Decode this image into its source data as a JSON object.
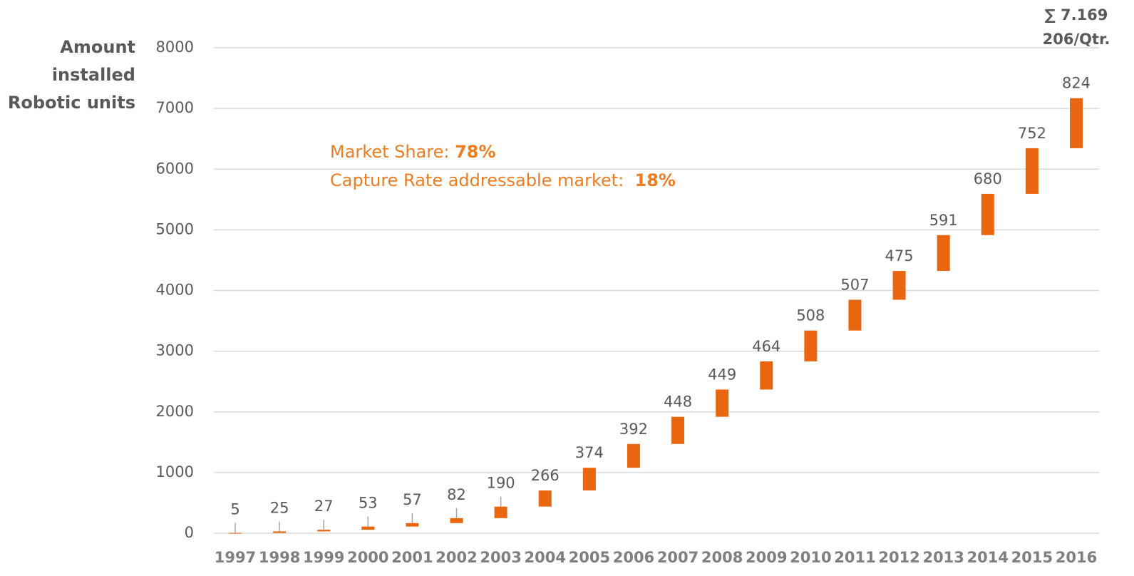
{
  "chart_data": {
    "type": "waterfall",
    "y_label": [
      "Amount",
      "installed",
      "Robotic units"
    ],
    "categories": [
      "1997",
      "1998",
      "1999",
      "2000",
      "2001",
      "2002",
      "2003",
      "2004",
      "2005",
      "2006",
      "2007",
      "2008",
      "2009",
      "2010",
      "2011",
      "2012",
      "2013",
      "2014",
      "2015",
      "2016"
    ],
    "values": [
      5,
      25,
      27,
      53,
      57,
      82,
      190,
      266,
      374,
      392,
      448,
      449,
      464,
      508,
      507,
      475,
      591,
      680,
      752,
      824
    ],
    "color": "#ea650f",
    "ylim": [
      0,
      8000
    ],
    "yticks": [
      0,
      1000,
      2000,
      3000,
      4000,
      5000,
      6000,
      7000,
      8000
    ],
    "grid": true,
    "annotations": {
      "total": "∑ 7.169",
      "per_quarter": "206/Qtr.",
      "market_share_label": "Market Share: ",
      "market_share_value": "78%",
      "capture_rate_label": "Capture Rate addressable market:  ",
      "capture_rate_value": "18%"
    }
  }
}
